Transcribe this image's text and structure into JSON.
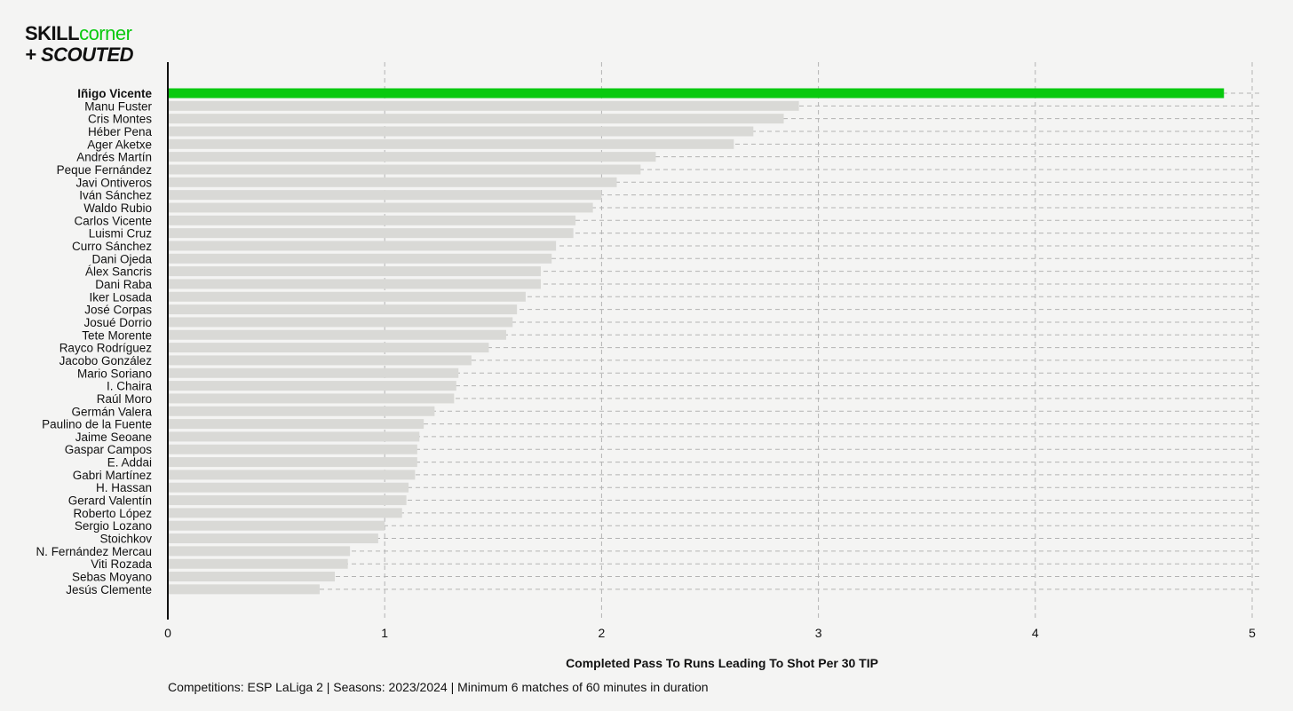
{
  "logo": {
    "line1_a": "SKILL",
    "line1_b": "corner",
    "line2": "+ SCOUTED"
  },
  "chart_data": {
    "type": "bar",
    "orientation": "horizontal",
    "xlabel": "Completed Pass To Runs Leading To Shot Per 30 TIP",
    "xlim": [
      0,
      5
    ],
    "xticks": [
      0,
      1,
      2,
      3,
      4,
      5
    ],
    "grid": true,
    "highlight": "Iñigo Vicente",
    "highlight_color": "#09c90f",
    "bar_color": "#d9d9d6",
    "categories": [
      "Iñigo Vicente",
      "Manu Fuster",
      "Cris Montes",
      "Héber Pena",
      "Ager Aketxe",
      "Andrés Martín",
      "Peque Fernández",
      "Javi Ontiveros",
      "Iván Sánchez",
      "Waldo Rubio",
      "Carlos Vicente",
      "Luismi Cruz",
      "Curro Sánchez",
      "Dani Ojeda",
      "Álex Sancris",
      "Dani Raba",
      "Iker Losada",
      "José Corpas",
      "Josué Dorrio",
      "Tete Morente",
      "Rayco Rodríguez",
      "Jacobo González",
      "Mario Soriano",
      "I. Chaira",
      "Raúl Moro",
      "Germán Valera",
      "Paulino de la Fuente",
      "Jaime Seoane",
      "Gaspar Campos",
      "E. Addai",
      "Gabri Martínez",
      "H. Hassan",
      "Gerard Valentín",
      "Roberto López",
      "Sergio Lozano",
      "Stoichkov",
      "N. Fernández Mercau",
      "Viti Rozada",
      "Sebas Moyano",
      "Jesús Clemente"
    ],
    "values": [
      4.87,
      2.91,
      2.84,
      2.7,
      2.61,
      2.25,
      2.18,
      2.07,
      2.0,
      1.96,
      1.88,
      1.87,
      1.79,
      1.77,
      1.72,
      1.72,
      1.65,
      1.61,
      1.59,
      1.56,
      1.48,
      1.4,
      1.34,
      1.33,
      1.32,
      1.23,
      1.18,
      1.16,
      1.15,
      1.15,
      1.14,
      1.11,
      1.1,
      1.08,
      1.0,
      0.97,
      0.84,
      0.83,
      0.77,
      0.7
    ]
  },
  "caption": "Competitions: ESP LaLiga 2 | Seasons: 2023/2024 | Minimum 6 matches of 60 minutes in duration"
}
